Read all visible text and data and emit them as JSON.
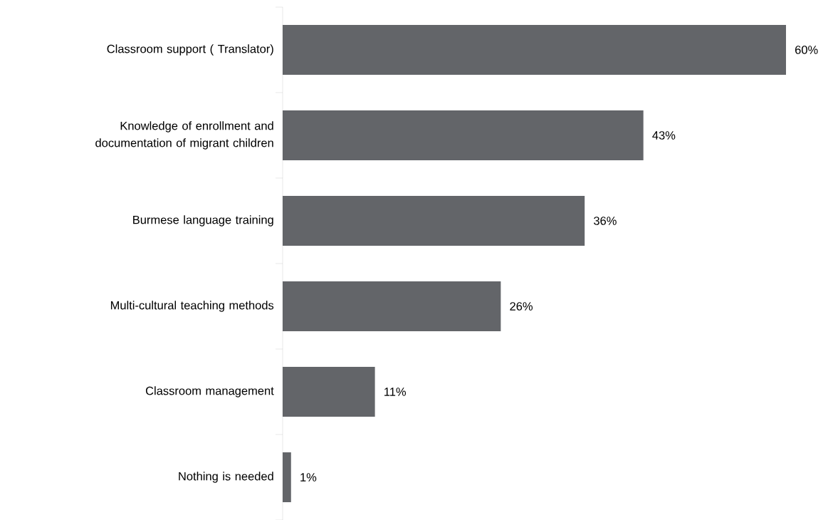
{
  "chart_data": {
    "type": "bar",
    "orientation": "horizontal",
    "categories": [
      "Classroom support ( Translator)",
      "Knowledge of enrollment and documentation of migrant children",
      "Burmese language training",
      "Multi-cultural teaching methods",
      "Classroom management",
      "Nothing is needed"
    ],
    "values": [
      60,
      43,
      36,
      26,
      11,
      1
    ],
    "value_labels": [
      "60%",
      "43%",
      "36%",
      "26%",
      "11%",
      "1%"
    ],
    "color": "#636569"
  }
}
